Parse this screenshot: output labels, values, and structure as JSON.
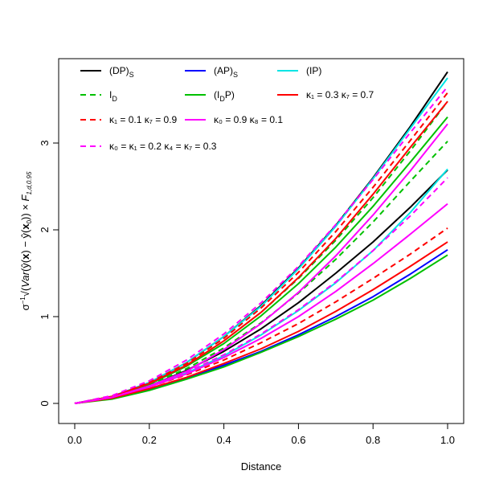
{
  "chart_data": {
    "type": "line",
    "title": "",
    "xlabel": "Distance",
    "ylabel": "σ⁻¹√(Var(ŷ(x) − ŷ(x₀)) × F₁,d,0.95)",
    "xlim": [
      0,
      1
    ],
    "ylim": [
      0,
      3.8
    ],
    "x_ticks": [
      0.0,
      0.2,
      0.4,
      0.6,
      0.8,
      1.0
    ],
    "x_tick_labels": [
      "0.0",
      "0.2",
      "0.4",
      "0.6",
      "0.8",
      "1.0"
    ],
    "y_ticks": [
      0,
      1,
      2,
      3
    ],
    "y_tick_labels": [
      "0",
      "1",
      "2",
      "3"
    ],
    "grid": false,
    "legend_position": "top",
    "legend": [
      {
        "label": "(DP)",
        "sub": "S",
        "color": "#000000",
        "dash": false
      },
      {
        "label": "(AP)",
        "sub": "S",
        "color": "#0000ff",
        "dash": false
      },
      {
        "label": "(IP)",
        "sub": "",
        "color": "#00e5e5",
        "dash": false
      },
      {
        "label": "I",
        "sub": "D",
        "color": "#00c000",
        "dash": true
      },
      {
        "label": "(I",
        "sub": "D",
        "post": "P)",
        "color": "#00c000",
        "dash": false
      },
      {
        "label": "κ₁ = 0.3 κ₇ = 0.7",
        "sub": "",
        "color": "#ff0000",
        "dash": false
      },
      {
        "label": "κ₁ = 0.1 κ₇ = 0.9",
        "sub": "",
        "color": "#ff0000",
        "dash": true
      },
      {
        "label": "κ₀ = 0.9 κ₈ = 0.1",
        "sub": "",
        "color": "#ff00ff",
        "dash": false
      },
      {
        "label": "κ₀ = κ₁ = 0.2 κ₄ = κ₇ = 0.3",
        "sub": "",
        "color": "#ff00ff",
        "dash": true
      }
    ],
    "x": [
      0,
      0.1,
      0.2,
      0.3,
      0.4,
      0.5,
      0.6,
      0.7,
      0.8,
      0.9,
      1.0
    ],
    "series": [
      {
        "color": "#000000",
        "dash": false,
        "values": [
          0,
          0.08,
          0.24,
          0.47,
          0.77,
          1.13,
          1.56,
          2.05,
          2.6,
          3.19,
          3.82
        ]
      },
      {
        "color": "#000000",
        "dash": false,
        "values": [
          0,
          0.07,
          0.2,
          0.38,
          0.6,
          0.86,
          1.16,
          1.5,
          1.86,
          2.26,
          2.69
        ]
      },
      {
        "color": "#0000ff",
        "dash": false,
        "values": [
          0,
          0.06,
          0.16,
          0.29,
          0.44,
          0.6,
          0.79,
          1.0,
          1.23,
          1.49,
          1.77
        ]
      },
      {
        "color": "#00e5e5",
        "dash": false,
        "values": [
          0,
          0.08,
          0.24,
          0.47,
          0.77,
          1.12,
          1.55,
          2.04,
          2.59,
          3.17,
          3.75
        ]
      },
      {
        "color": "#00e5e5",
        "dash": false,
        "values": [
          0,
          0.07,
          0.19,
          0.35,
          0.55,
          0.79,
          1.07,
          1.39,
          1.76,
          2.2,
          2.7
        ]
      },
      {
        "color": "#00c000",
        "dash": true,
        "values": [
          0,
          0.08,
          0.23,
          0.44,
          0.72,
          1.05,
          1.44,
          1.88,
          2.37,
          2.91,
          3.48
        ]
      },
      {
        "color": "#00c000",
        "dash": true,
        "values": [
          0,
          0.07,
          0.21,
          0.4,
          0.64,
          0.93,
          1.27,
          1.66,
          2.09,
          2.56,
          3.02
        ]
      },
      {
        "color": "#00c000",
        "dash": false,
        "values": [
          0,
          0.08,
          0.22,
          0.43,
          0.69,
          1.01,
          1.38,
          1.8,
          2.27,
          2.78,
          3.3
        ]
      },
      {
        "color": "#00c000",
        "dash": false,
        "values": [
          0,
          0.05,
          0.15,
          0.28,
          0.42,
          0.59,
          0.77,
          0.97,
          1.19,
          1.44,
          1.71
        ]
      },
      {
        "color": "#ff0000",
        "dash": false,
        "values": [
          0,
          0.08,
          0.23,
          0.44,
          0.72,
          1.05,
          1.45,
          1.9,
          2.41,
          2.95,
          3.48
        ]
      },
      {
        "color": "#ff0000",
        "dash": false,
        "values": [
          0,
          0.06,
          0.17,
          0.3,
          0.46,
          0.63,
          0.83,
          1.06,
          1.31,
          1.58,
          1.86
        ]
      },
      {
        "color": "#ff0000",
        "dash": true,
        "values": [
          0,
          0.08,
          0.24,
          0.46,
          0.75,
          1.1,
          1.51,
          1.98,
          2.49,
          3.03,
          3.58
        ]
      },
      {
        "color": "#ff0000",
        "dash": true,
        "values": [
          0,
          0.07,
          0.19,
          0.33,
          0.5,
          0.7,
          0.92,
          1.17,
          1.44,
          1.72,
          2.02
        ]
      },
      {
        "color": "#ff00ff",
        "dash": false,
        "values": [
          0,
          0.07,
          0.2,
          0.37,
          0.62,
          0.92,
          1.28,
          1.7,
          2.17,
          2.68,
          3.22
        ]
      },
      {
        "color": "#ff00ff",
        "dash": false,
        "values": [
          0,
          0.07,
          0.19,
          0.34,
          0.53,
          0.75,
          1.0,
          1.29,
          1.61,
          1.95,
          2.3
        ]
      },
      {
        "color": "#ff00ff",
        "dash": true,
        "values": [
          0,
          0.09,
          0.26,
          0.5,
          0.8,
          1.16,
          1.58,
          2.06,
          2.58,
          3.12,
          3.65
        ]
      },
      {
        "color": "#ff00ff",
        "dash": true,
        "values": [
          0,
          0.07,
          0.2,
          0.36,
          0.56,
          0.8,
          1.08,
          1.4,
          1.76,
          2.16,
          2.6
        ]
      }
    ]
  }
}
